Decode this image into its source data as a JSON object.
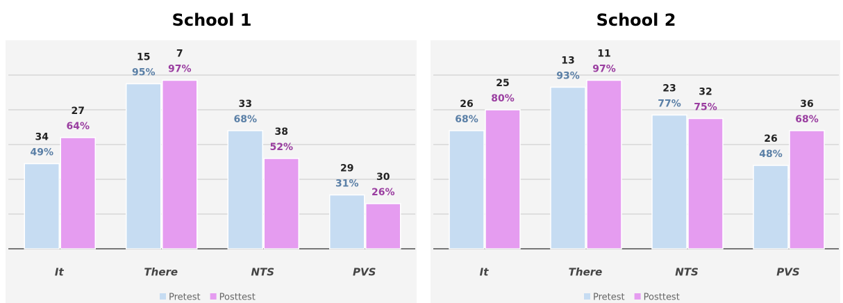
{
  "chart_data": [
    {
      "type": "bar",
      "title": "School 1",
      "categories": [
        "It",
        "There",
        "NTS",
        "PVS"
      ],
      "series": [
        {
          "name": "Pretest",
          "color": "#c6dcf2",
          "values": [
            49,
            95,
            68,
            31
          ],
          "value_labels": [
            "49%",
            "95%",
            "68%",
            "31%"
          ],
          "counts": [
            34,
            15,
            33,
            29
          ]
        },
        {
          "name": "Posttest",
          "color": "#e59cf0",
          "values": [
            64,
            97,
            52,
            26
          ],
          "value_labels": [
            "64%",
            "97%",
            "52%",
            "26%"
          ],
          "counts": [
            27,
            7,
            38,
            30
          ]
        }
      ],
      "ylim": [
        0,
        100
      ],
      "yticks": [
        0,
        20,
        40,
        60,
        80,
        100
      ],
      "grid": true,
      "legend": "bottom"
    },
    {
      "type": "bar",
      "title": "School 2",
      "categories": [
        "It",
        "There",
        "NTS",
        "PVS"
      ],
      "series": [
        {
          "name": "Pretest",
          "color": "#c6dcf2",
          "values": [
            68,
            93,
            77,
            48
          ],
          "value_labels": [
            "68%",
            "93%",
            "77%",
            "48%"
          ],
          "counts": [
            26,
            13,
            23,
            26
          ]
        },
        {
          "name": "Posttest",
          "color": "#e59cf0",
          "values": [
            80,
            97,
            75,
            68
          ],
          "value_labels": [
            "80%",
            "97%",
            "75%",
            "68%"
          ],
          "counts": [
            25,
            11,
            32,
            36
          ]
        }
      ],
      "ylim": [
        0,
        100
      ],
      "yticks": [
        0,
        20,
        40,
        60,
        80,
        100
      ],
      "grid": true,
      "legend": "bottom"
    }
  ]
}
